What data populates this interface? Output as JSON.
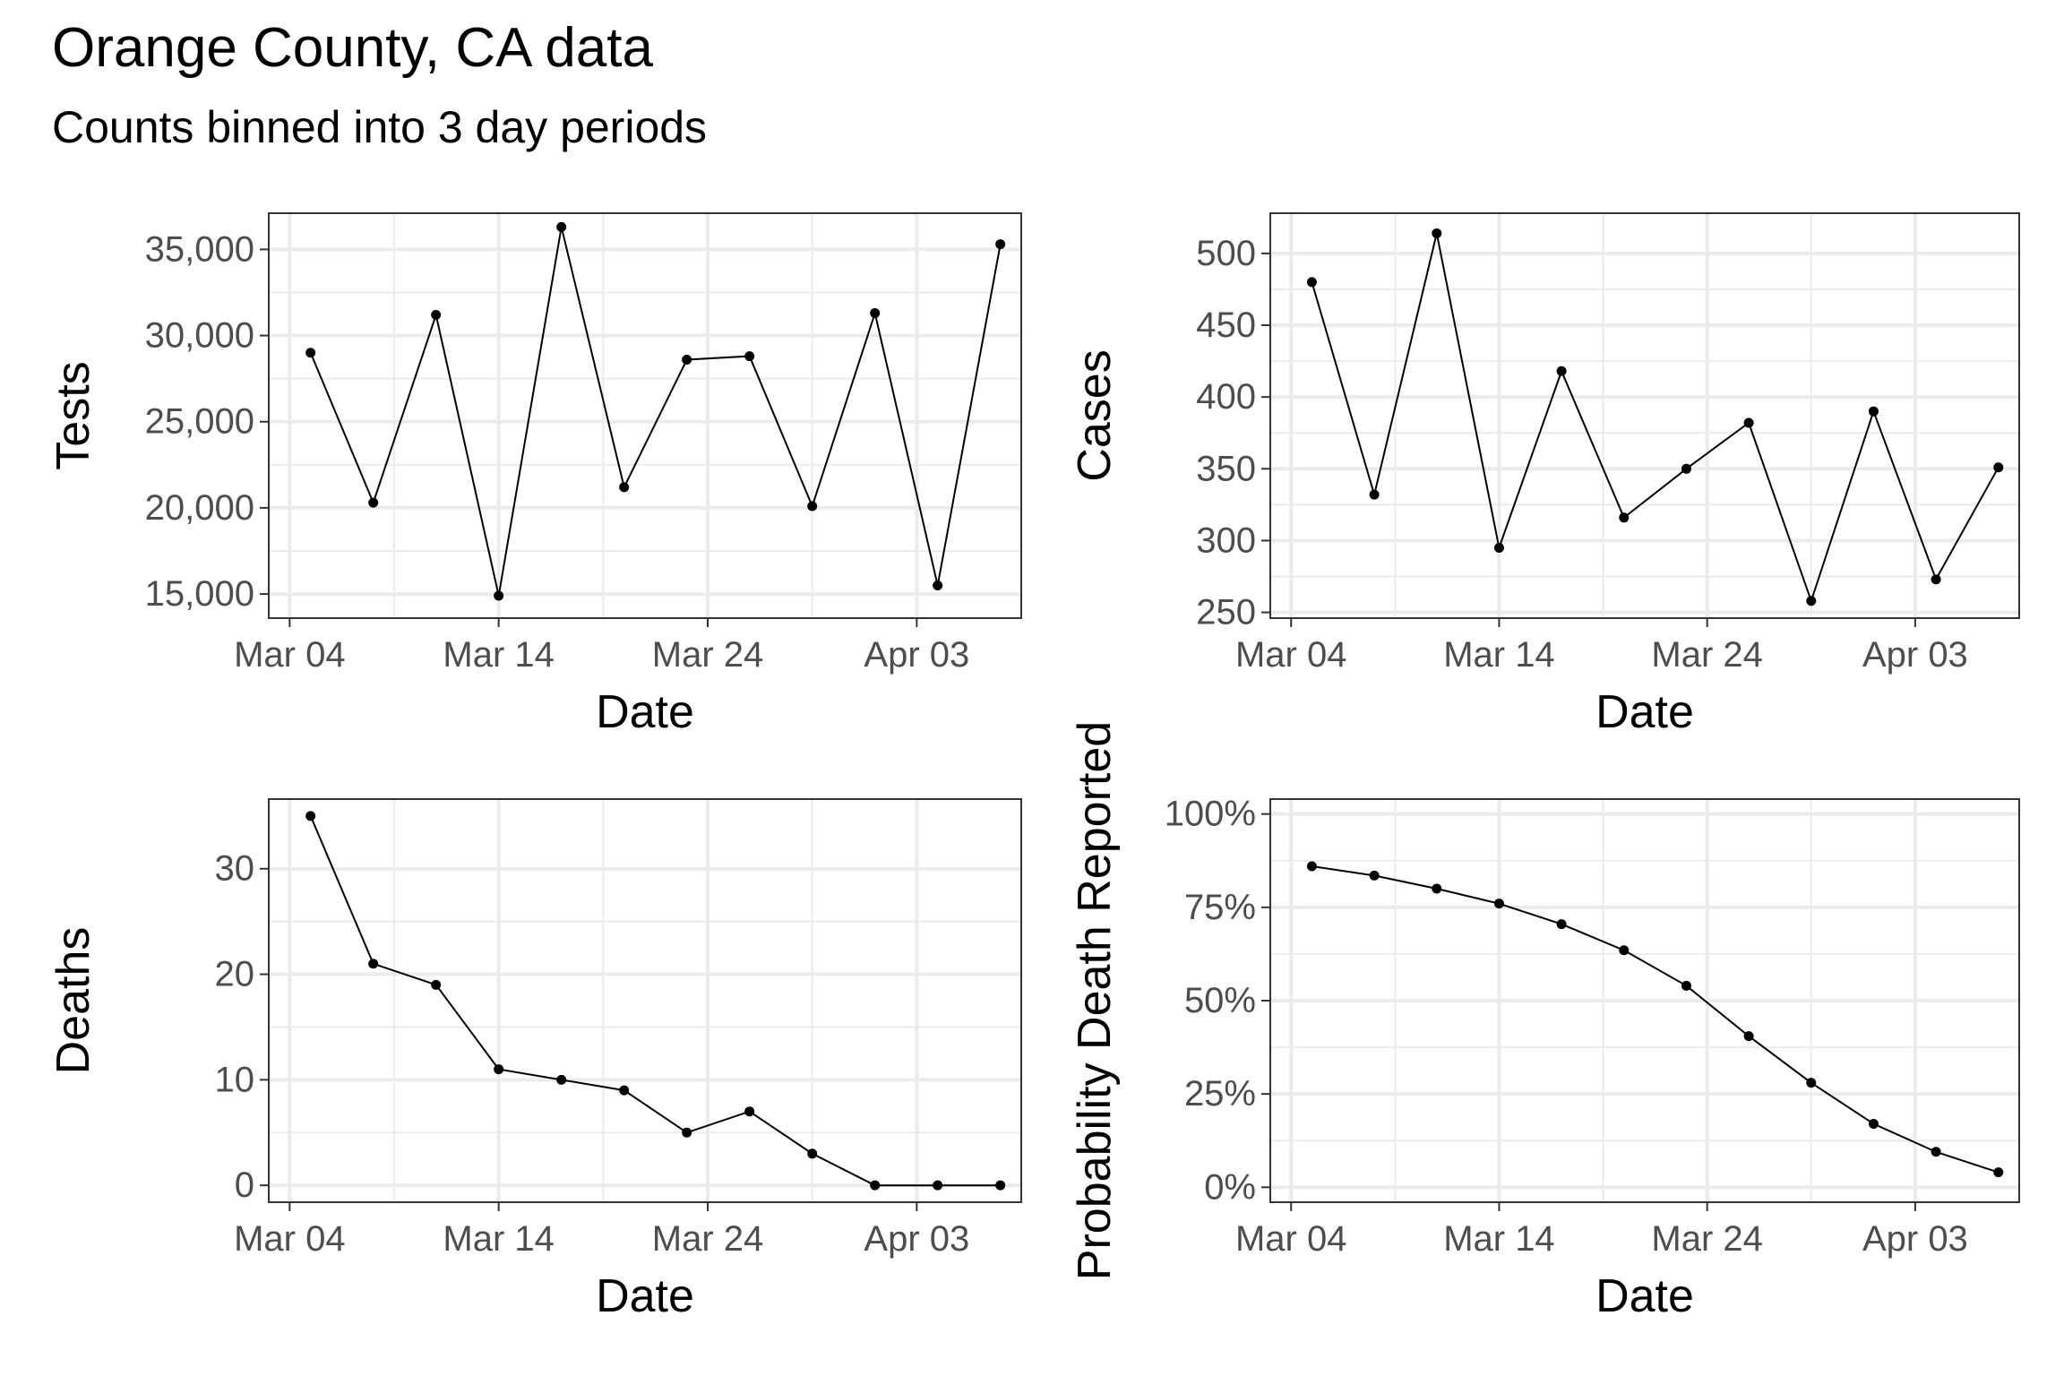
{
  "title": "Orange County, CA data",
  "subtitle": "Counts binned into 3 day periods",
  "chart_data": [
    {
      "type": "line",
      "xlabel": "Date",
      "ylabel": "Tests",
      "x": [
        "2020-03-05",
        "2020-03-08",
        "2020-03-11",
        "2020-03-14",
        "2020-03-17",
        "2020-03-20",
        "2020-03-23",
        "2020-03-26",
        "2020-03-29",
        "2020-04-01",
        "2020-04-04",
        "2020-04-07"
      ],
      "values": [
        29000,
        20300,
        31200,
        14900,
        36300,
        21200,
        28600,
        28800,
        20100,
        31300,
        15500,
        35300
      ],
      "xticks": [
        "Mar 04",
        "Mar 14",
        "Mar 24",
        "Apr 03"
      ],
      "xtick_dates": [
        "2020-03-04",
        "2020-03-14",
        "2020-03-24",
        "2020-04-03"
      ],
      "yticks": [
        15000,
        20000,
        25000,
        30000,
        35000
      ],
      "ytick_labels": [
        "15,000",
        "20,000",
        "25,000",
        "30,000",
        "35,000"
      ],
      "xlim": [
        "2020-03-03",
        "2020-04-08"
      ],
      "ylim": [
        13600,
        37100
      ],
      "grid": true
    },
    {
      "type": "line",
      "xlabel": "Date",
      "ylabel": "Cases",
      "x": [
        "2020-03-05",
        "2020-03-08",
        "2020-03-11",
        "2020-03-14",
        "2020-03-17",
        "2020-03-20",
        "2020-03-23",
        "2020-03-26",
        "2020-03-29",
        "2020-04-01",
        "2020-04-04",
        "2020-04-07"
      ],
      "values": [
        480,
        332,
        514,
        295,
        418,
        316,
        350,
        382,
        258,
        390,
        273,
        351
      ],
      "xticks": [
        "Mar 04",
        "Mar 14",
        "Mar 24",
        "Apr 03"
      ],
      "xtick_dates": [
        "2020-03-04",
        "2020-03-14",
        "2020-03-24",
        "2020-04-03"
      ],
      "yticks": [
        250,
        300,
        350,
        400,
        450,
        500
      ],
      "ytick_labels": [
        "250",
        "300",
        "350",
        "400",
        "450",
        "500"
      ],
      "xlim": [
        "2020-03-03",
        "2020-04-08"
      ],
      "ylim": [
        246,
        528
      ],
      "grid": true
    },
    {
      "type": "line",
      "xlabel": "Date",
      "ylabel": "Deaths",
      "x": [
        "2020-03-05",
        "2020-03-08",
        "2020-03-11",
        "2020-03-14",
        "2020-03-17",
        "2020-03-20",
        "2020-03-23",
        "2020-03-26",
        "2020-03-29",
        "2020-04-01",
        "2020-04-04",
        "2020-04-07"
      ],
      "values": [
        35,
        21,
        19,
        11,
        10,
        9,
        5,
        7,
        3,
        0,
        0,
        0
      ],
      "xticks": [
        "Mar 04",
        "Mar 14",
        "Mar 24",
        "Apr 03"
      ],
      "xtick_dates": [
        "2020-03-04",
        "2020-03-14",
        "2020-03-24",
        "2020-04-03"
      ],
      "yticks": [
        0,
        10,
        20,
        30
      ],
      "ytick_labels": [
        "0",
        "10",
        "20",
        "30"
      ],
      "xlim": [
        "2020-03-03",
        "2020-04-08"
      ],
      "ylim": [
        -1.6,
        36.6
      ],
      "grid": true
    },
    {
      "type": "line",
      "xlabel": "Date",
      "ylabel": "Probability Death Reported",
      "x": [
        "2020-03-05",
        "2020-03-08",
        "2020-03-11",
        "2020-03-14",
        "2020-03-17",
        "2020-03-20",
        "2020-03-23",
        "2020-03-26",
        "2020-03-29",
        "2020-04-01",
        "2020-04-04",
        "2020-04-07"
      ],
      "values": [
        0.86,
        0.835,
        0.8,
        0.76,
        0.705,
        0.635,
        0.54,
        0.405,
        0.28,
        0.17,
        0.095,
        0.04
      ],
      "xticks": [
        "Mar 04",
        "Mar 14",
        "Mar 24",
        "Apr 03"
      ],
      "xtick_dates": [
        "2020-03-04",
        "2020-03-14",
        "2020-03-24",
        "2020-04-03"
      ],
      "yticks": [
        0,
        0.25,
        0.5,
        0.75,
        1.0
      ],
      "ytick_labels": [
        "0%",
        "25%",
        "50%",
        "75%",
        "100%"
      ],
      "xlim": [
        "2020-03-03",
        "2020-04-08"
      ],
      "ylim": [
        -0.04,
        1.04
      ],
      "grid": true
    }
  ]
}
